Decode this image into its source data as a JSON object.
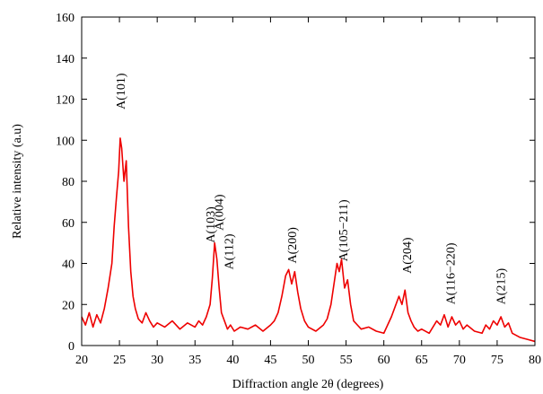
{
  "chart_data": {
    "type": "line",
    "title": "",
    "xlabel": "Diffraction angle 2θ (degrees)",
    "ylabel": "Relative intensity (a.u)",
    "xlim": [
      20,
      80
    ],
    "ylim": [
      0,
      160
    ],
    "xticks": [
      "20",
      "25",
      "30",
      "35",
      "40",
      "45",
      "50",
      "55",
      "60",
      "65",
      "70",
      "75",
      "80"
    ],
    "yticks": [
      "0",
      "20",
      "40",
      "60",
      "80",
      "100",
      "120",
      "140",
      "160"
    ],
    "grid": false,
    "legend": "none",
    "series_color": "#ee0000",
    "series": [
      {
        "x": [
          20.0,
          20.5,
          21.0,
          21.5,
          22.0,
          22.5,
          23.0,
          23.5,
          24.0,
          24.3,
          24.6,
          24.9,
          25.1,
          25.3,
          25.6,
          25.9,
          26.2,
          26.5,
          26.8,
          27.1,
          27.5,
          28.0,
          28.5,
          29.0,
          29.5,
          30.0,
          31.0,
          32.0,
          33.0,
          34.0,
          35.0,
          35.5,
          36.0,
          36.5,
          37.0,
          37.3,
          37.6,
          37.9,
          38.2,
          38.5,
          38.9,
          39.3,
          39.7,
          40.2,
          41.0,
          42.0,
          43.0,
          44.0,
          45.0,
          45.5,
          46.0,
          46.5,
          47.0,
          47.4,
          47.8,
          48.2,
          48.6,
          49.0,
          49.5,
          50.0,
          51.0,
          52.0,
          52.5,
          53.0,
          53.4,
          53.8,
          54.1,
          54.4,
          54.8,
          55.2,
          55.6,
          56.0,
          56.5,
          57.0,
          58.0,
          59.0,
          60.0,
          60.5,
          61.0,
          61.5,
          62.0,
          62.4,
          62.8,
          63.2,
          63.6,
          64.0,
          64.5,
          65.0,
          66.0,
          67.0,
          67.5,
          68.0,
          68.5,
          69.0,
          69.5,
          70.0,
          70.5,
          71.0,
          72.0,
          73.0,
          73.5,
          74.0,
          74.5,
          75.0,
          75.5,
          76.0,
          76.5,
          77.0,
          78.0,
          79.0,
          80.0
        ],
        "y": [
          14,
          10,
          16,
          9,
          15,
          11,
          18,
          28,
          40,
          58,
          72,
          85,
          101,
          96,
          80,
          90,
          58,
          36,
          24,
          18,
          13,
          11,
          16,
          12,
          9,
          11,
          9,
          12,
          8,
          11,
          9,
          12,
          10,
          14,
          20,
          33,
          50,
          42,
          28,
          16,
          12,
          8,
          10,
          7,
          9,
          8,
          10,
          7,
          10,
          12,
          16,
          24,
          34,
          37,
          30,
          36,
          26,
          18,
          12,
          9,
          7,
          10,
          13,
          20,
          30,
          40,
          36,
          42,
          28,
          32,
          20,
          12,
          10,
          8,
          9,
          7,
          6,
          10,
          14,
          19,
          24,
          20,
          27,
          16,
          12,
          9,
          7,
          8,
          6,
          12,
          10,
          15,
          9,
          14,
          10,
          12,
          8,
          10,
          7,
          6,
          10,
          8,
          12,
          10,
          14,
          9,
          11,
          6,
          4,
          3,
          2
        ]
      }
    ],
    "annotations": [
      {
        "text": "A(101)",
        "x": 25.1,
        "y": 115
      },
      {
        "text": "A(103)",
        "x": 37.0,
        "y": 50
      },
      {
        "text": "A(004)",
        "x": 38.1,
        "y": 56
      },
      {
        "text": "A(112)",
        "x": 39.4,
        "y": 37
      },
      {
        "text": "A(200)",
        "x": 47.8,
        "y": 40
      },
      {
        "text": "A(105−211)",
        "x": 54.6,
        "y": 41
      },
      {
        "text": "A(204)",
        "x": 63.0,
        "y": 35
      },
      {
        "text": "A(116−220)",
        "x": 68.8,
        "y": 20
      },
      {
        "text": "A(215)",
        "x": 75.4,
        "y": 20
      }
    ]
  }
}
